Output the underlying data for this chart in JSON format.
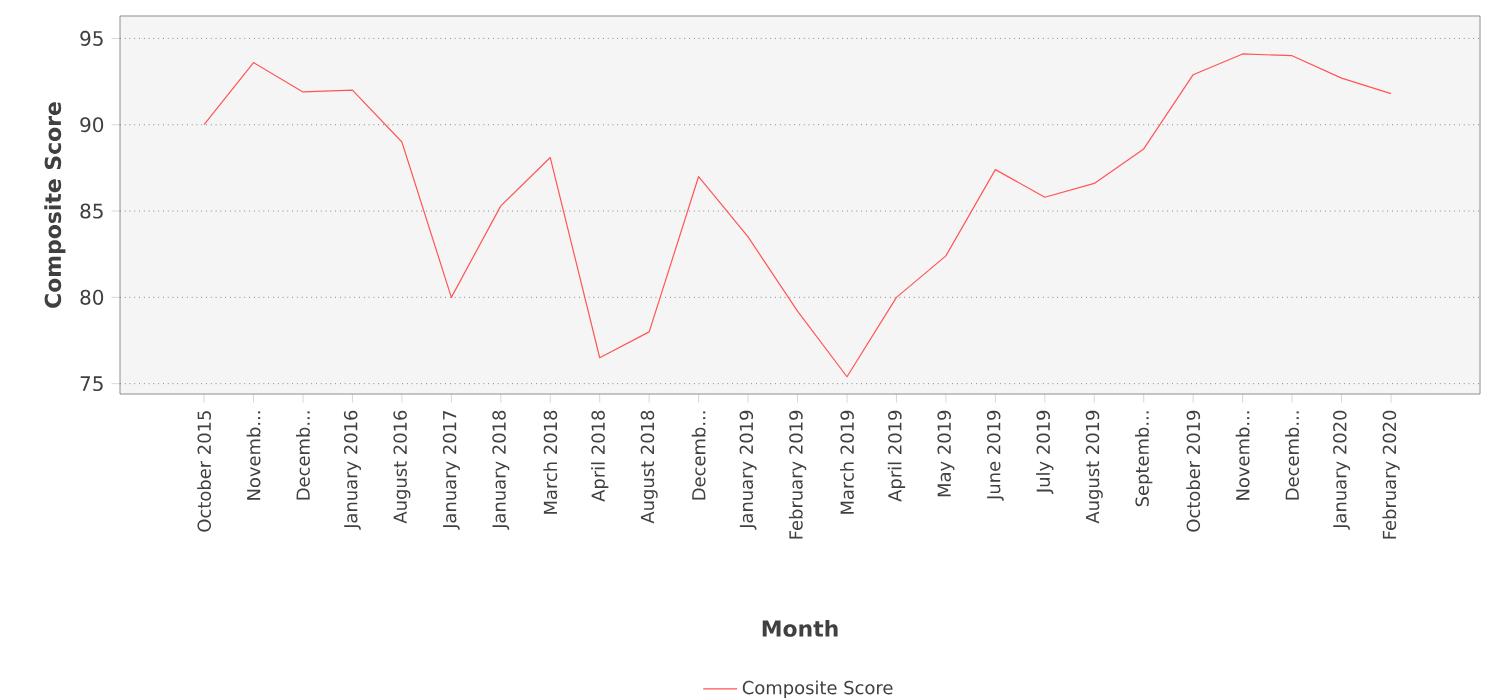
{
  "chart_data": {
    "type": "line",
    "xlabel": "Month",
    "ylabel": "Composite Score",
    "categories": [
      "October 2015",
      "Novemb...",
      "Decemb...",
      "January 2016",
      "August 2016",
      "January 2017",
      "January 2018",
      "March 2018",
      "April 2018",
      "August 2018",
      "Decemb...",
      "January 2019",
      "February 2019",
      "March 2019",
      "April 2019",
      "May 2019",
      "June 2019",
      "July 2019",
      "August 2019",
      "Septemb...",
      "October 2019",
      "Novemb...",
      "Decemb...",
      "January 2020",
      "February 2020"
    ],
    "series": [
      {
        "name": "Composite Score",
        "color": "#ff5555",
        "values": [
          90.0,
          93.6,
          91.9,
          92.0,
          89.0,
          80.0,
          85.3,
          88.1,
          76.5,
          78.0,
          87.0,
          83.5,
          79.2,
          75.4,
          80.0,
          82.4,
          87.4,
          85.8,
          86.6,
          88.6,
          92.9,
          94.1,
          94.0,
          92.7,
          91.8
        ]
      }
    ],
    "ylim": [
      74.4,
      96.3
    ],
    "yticks": [
      75,
      80,
      85,
      90,
      95
    ],
    "grid": "y",
    "legend": "bottom",
    "marker": "none",
    "line_style": "solid"
  }
}
